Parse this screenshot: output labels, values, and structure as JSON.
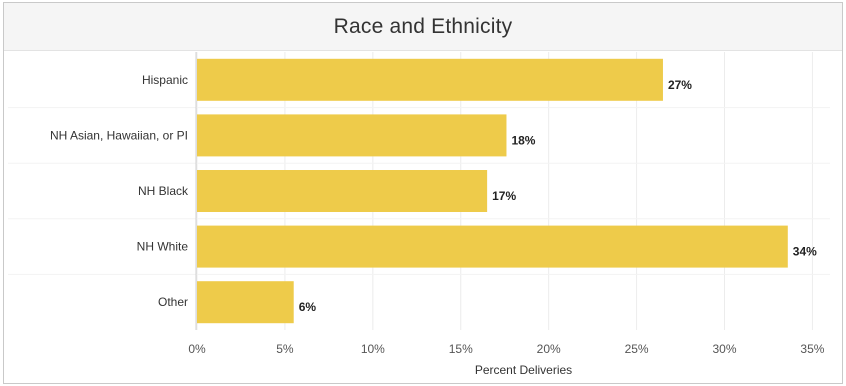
{
  "chart_data": {
    "type": "bar",
    "orientation": "horizontal",
    "title": "Race and Ethnicity",
    "xlabel": "Percent Deliveries",
    "ylabel": "",
    "categories": [
      "Hispanic",
      "NH Asian, Hawaiian, or PI",
      "NH Black",
      "NH White",
      "Other"
    ],
    "values": [
      26.5,
      17.6,
      16.5,
      33.6,
      5.5
    ],
    "value_labels": [
      "27%",
      "18%",
      "17%",
      "34%",
      "6%"
    ],
    "xlim": [
      0,
      36
    ],
    "x_ticks": [
      0,
      5,
      10,
      15,
      20,
      25,
      30,
      35
    ],
    "x_tick_labels": [
      "0%",
      "5%",
      "10%",
      "15%",
      "20%",
      "25%",
      "30%",
      "35%"
    ],
    "grid": true,
    "bar_color": "#eecb4a"
  }
}
